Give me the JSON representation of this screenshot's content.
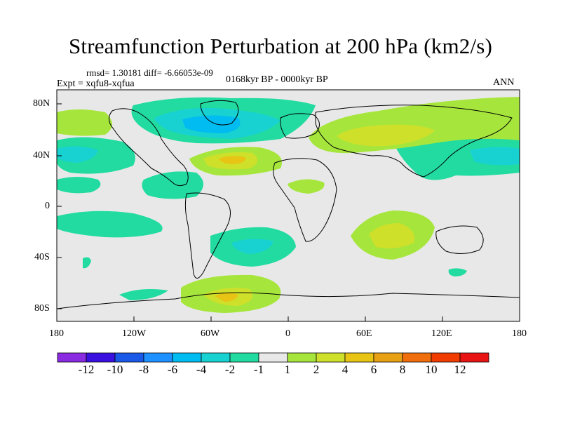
{
  "figure": {
    "title": "Streamfunction Perturbation at 200 hPa (km2/s)",
    "stats": "rmsd= 1.30181 diff= -6.66053e-09",
    "experiment": "Expt = xqfu8-xqfua",
    "period": "0168kyr BP - 0000kyr BP",
    "season": "ANN"
  },
  "axes": {
    "lat_labels": [
      "80N",
      "40N",
      "0",
      "40S",
      "80S"
    ],
    "lon_labels": [
      "180",
      "120W",
      "60W",
      "0",
      "60E",
      "120E",
      "180"
    ]
  },
  "colorbar": {
    "labels": [
      "-12",
      "-10",
      "-8",
      "-6",
      "-4",
      "-2",
      "-1",
      "1",
      "2",
      "4",
      "6",
      "8",
      "10",
      "12"
    ],
    "colors": [
      "#8a2be2",
      "#3a10e0",
      "#1a58e8",
      "#1e90ff",
      "#00bcf0",
      "#18d2d2",
      "#22dba0",
      "#e8e8e8",
      "#a6e63c",
      "#cee02a",
      "#e8c414",
      "#e8a014",
      "#f06e0c",
      "#f03c00",
      "#e81414"
    ]
  },
  "colors": {
    "ocean": "#e8e8e8",
    "coast": "#000000"
  }
}
